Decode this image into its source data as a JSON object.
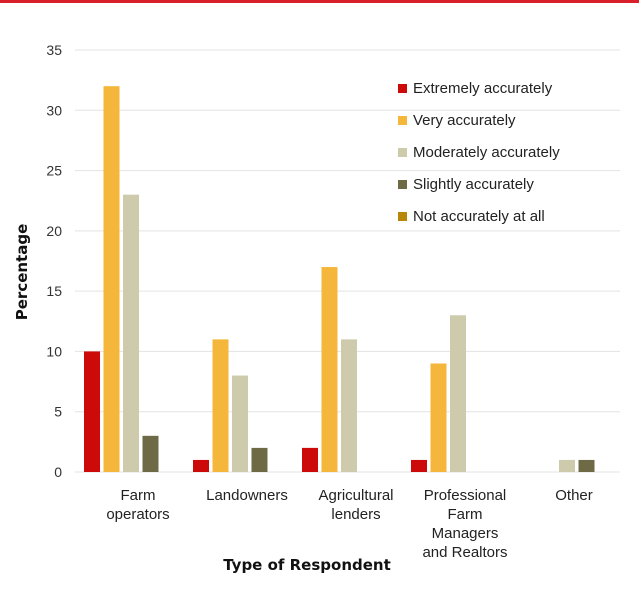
{
  "chart_data": {
    "type": "bar",
    "categories": [
      [
        "Farm",
        "operators"
      ],
      [
        "Landowners"
      ],
      [
        "Agricultural",
        "lenders"
      ],
      [
        "Professional",
        "Farm",
        "Managers",
        "and Realtors"
      ],
      [
        "Other"
      ]
    ],
    "series": [
      {
        "name": "Extremely accurately",
        "color": "#cc0a0a",
        "values": [
          10,
          1,
          2,
          1,
          0
        ]
      },
      {
        "name": "Very accurately",
        "color": "#f5b73b",
        "values": [
          32,
          11,
          17,
          9,
          0
        ]
      },
      {
        "name": "Moderately accurately",
        "color": "#cdcbab",
        "values": [
          23,
          8,
          11,
          13,
          1
        ]
      },
      {
        "name": "Slightly accurately",
        "color": "#6e6a45",
        "values": [
          3,
          2,
          0,
          0,
          1
        ]
      },
      {
        "name": "Not accurately at all",
        "color": "#b8860b",
        "values": [
          0,
          0,
          0,
          0,
          0
        ]
      }
    ],
    "xlabel": "Type of Respondent",
    "ylabel": "Percentage",
    "ylim": [
      0,
      35
    ],
    "yticks": [
      0,
      5,
      10,
      15,
      20,
      25,
      30,
      35
    ],
    "grid": true,
    "legend_position": "top-right",
    "accent_color": "#d9202a"
  }
}
